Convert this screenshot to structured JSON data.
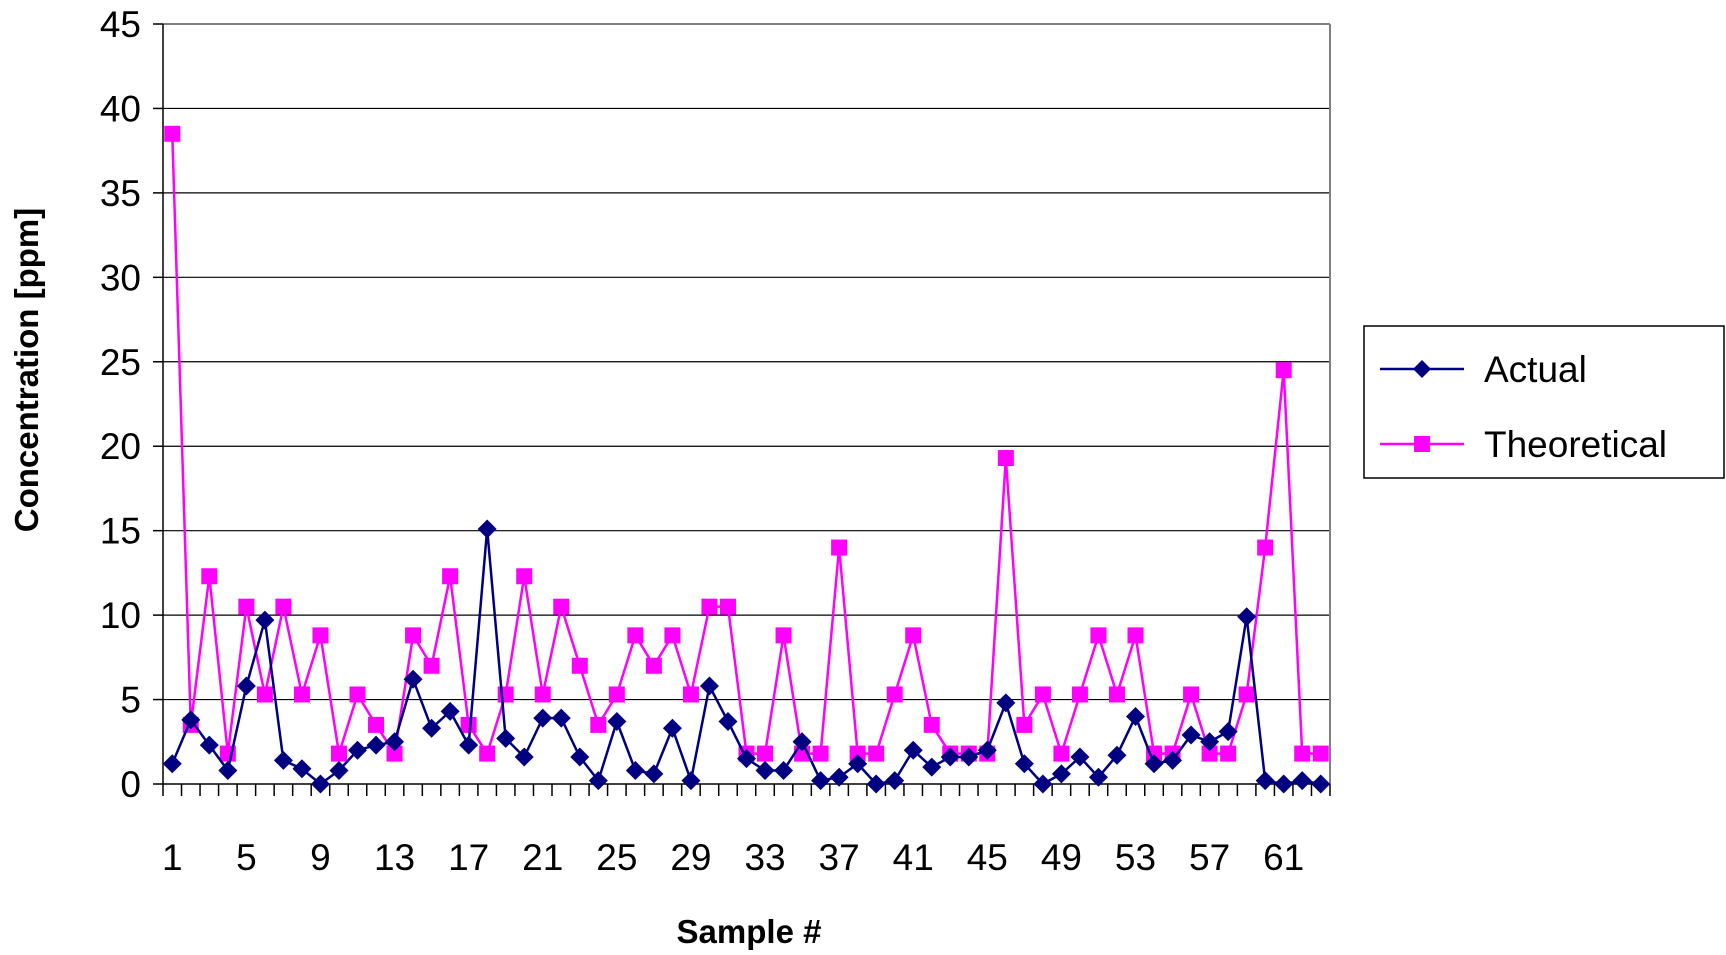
{
  "chart_data": {
    "type": "line",
    "title": "",
    "xlabel": "Sample #",
    "ylabel": "Concentration [ppm]",
    "ylim": [
      0,
      45
    ],
    "y_ticks": [
      "0",
      "5",
      "10",
      "15",
      "20",
      "25",
      "30",
      "35",
      "40",
      "45"
    ],
    "x": [
      1,
      2,
      3,
      4,
      5,
      6,
      7,
      8,
      9,
      10,
      11,
      12,
      13,
      14,
      15,
      16,
      17,
      18,
      19,
      20,
      21,
      22,
      23,
      24,
      25,
      26,
      27,
      28,
      29,
      30,
      31,
      32,
      33,
      34,
      35,
      36,
      37,
      38,
      39,
      40,
      41,
      42,
      43,
      44,
      45,
      46,
      47,
      48,
      49,
      50,
      51,
      52,
      53,
      54,
      55,
      56,
      57,
      58,
      59,
      60,
      61,
      62,
      63
    ],
    "x_tick_labels": [
      "1",
      "5",
      "9",
      "13",
      "17",
      "21",
      "25",
      "29",
      "33",
      "37",
      "41",
      "45",
      "49",
      "53",
      "57",
      "61"
    ],
    "x_tick_label_values": [
      1,
      5,
      9,
      13,
      17,
      21,
      25,
      29,
      33,
      37,
      41,
      45,
      49,
      53,
      57,
      61
    ],
    "grid": "horizontal",
    "legend_position": "right",
    "series": [
      {
        "name": "Actual",
        "color": "#000080",
        "marker": "diamond",
        "values": [
          1.2,
          3.8,
          2.3,
          0.8,
          5.8,
          9.7,
          1.4,
          0.9,
          0.0,
          0.8,
          2.0,
          2.3,
          2.5,
          6.2,
          3.3,
          4.3,
          2.3,
          15.1,
          2.7,
          1.6,
          3.9,
          3.9,
          1.6,
          0.2,
          3.7,
          0.8,
          0.6,
          3.3,
          0.2,
          5.8,
          3.7,
          1.5,
          0.8,
          0.8,
          2.5,
          0.2,
          0.4,
          1.2,
          0.0,
          0.2,
          2.0,
          1.0,
          1.6,
          1.6,
          2.0,
          4.8,
          1.2,
          0.0,
          0.6,
          1.6,
          0.4,
          1.7,
          4.0,
          1.2,
          1.4,
          2.9,
          2.5,
          3.1,
          9.9,
          0.2,
          0.0,
          0.2,
          0.0
        ]
      },
      {
        "name": "Theoretical",
        "color": "#FF00FF",
        "marker": "square",
        "values": [
          38.5,
          3.5,
          12.3,
          1.8,
          10.5,
          5.3,
          10.5,
          5.3,
          8.8,
          1.8,
          5.3,
          3.5,
          1.8,
          8.8,
          7.0,
          12.3,
          3.5,
          1.8,
          5.3,
          12.3,
          5.3,
          10.5,
          7.0,
          3.5,
          5.3,
          8.8,
          7.0,
          8.8,
          5.3,
          10.5,
          10.5,
          1.8,
          1.8,
          8.8,
          1.8,
          1.8,
          14.0,
          1.8,
          1.8,
          5.3,
          8.8,
          3.5,
          1.8,
          1.8,
          1.8,
          19.3,
          3.5,
          5.3,
          1.8,
          5.3,
          8.8,
          5.3,
          8.8,
          1.8,
          1.8,
          5.3,
          1.8,
          1.8,
          5.3,
          14.0,
          24.5,
          1.8,
          1.8
        ]
      }
    ]
  }
}
